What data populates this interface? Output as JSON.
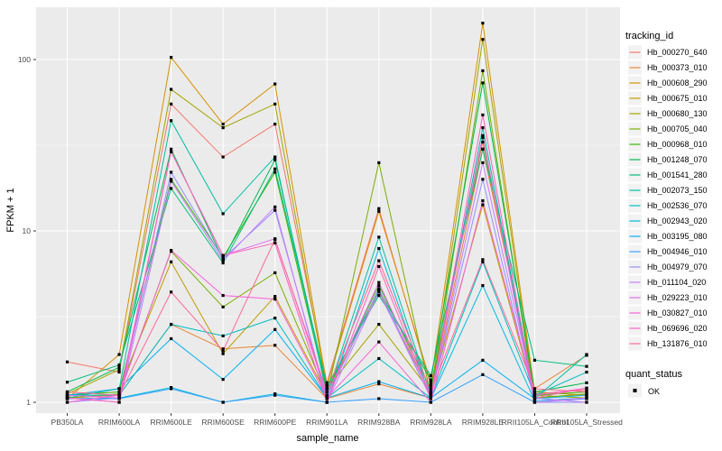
{
  "figure": {
    "background": "#ffffff",
    "panel_background": "#ebebeb",
    "grid_color": "#ffffff",
    "tick_color": "#333333",
    "tick_label_color": "#4d4d4d",
    "point_color": "#000000"
  },
  "legend": {
    "tracking_id_title": "tracking_id",
    "quant_status_title": "quant_status",
    "quant_items": [
      {
        "label": "OK",
        "symbol": "black-square"
      }
    ],
    "key_background": "#f2f2f2"
  },
  "chart_data": {
    "type": "line",
    "title": "",
    "xlabel": "sample_name",
    "ylabel": "FPKM + 1",
    "yscale": "log10",
    "ylim": [
      1,
      200
    ],
    "y_major_ticks": [
      1,
      10,
      100
    ],
    "y_minor_ticks": [
      3.1623,
      31.623
    ],
    "grid": true,
    "legend_position": "right",
    "point_shape": "square",
    "x": [
      "PB350LA",
      "RRIM600LA",
      "RRIM600LE",
      "RRIM600SE",
      "RRIM600PE",
      "RRIM901LA",
      "RRIM928BA",
      "RRIM928LA",
      "RRIM928LE",
      "RRII105LA_Control",
      "RRII105LA_Stressed"
    ],
    "series": [
      {
        "name": "Hb_000270_640",
        "color": "#F8766D",
        "values": [
          1.72,
          1.5,
          55,
          27,
          42,
          1.3,
          13.5,
          1.25,
          33,
          1.12,
          1.18
        ]
      },
      {
        "name": "Hb_000373_010",
        "color": "#EA8331",
        "values": [
          1.06,
          1.1,
          2.85,
          2.05,
          2.15,
          1.05,
          1.28,
          1.06,
          30,
          1.2,
          1.88
        ]
      },
      {
        "name": "Hb_000608_290",
        "color": "#D89000",
        "values": [
          1.05,
          1.9,
          103,
          42,
          72,
          1.25,
          13.0,
          1.3,
          163,
          1.15,
          1.1
        ]
      },
      {
        "name": "Hb_000675_010",
        "color": "#C09B00",
        "values": [
          1.1,
          1.2,
          6.6,
          1.92,
          4.15,
          1.1,
          4.5,
          1.12,
          14.2,
          1.06,
          1.1
        ]
      },
      {
        "name": "Hb_000680_130",
        "color": "#A3A500",
        "values": [
          1.12,
          1.55,
          67,
          40,
          55,
          1.2,
          2.85,
          1.15,
          131,
          1.1,
          1.06
        ]
      },
      {
        "name": "Hb_000705_040",
        "color": "#7CAE00",
        "values": [
          1.06,
          1.12,
          7.6,
          3.6,
          5.7,
          1.1,
          25,
          1.1,
          86,
          1.06,
          1.12
        ]
      },
      {
        "name": "Hb_000968_010",
        "color": "#39B600",
        "values": [
          1.1,
          1.15,
          20,
          7.0,
          22,
          1.15,
          4.8,
          1.2,
          35,
          1.1,
          1.15
        ]
      },
      {
        "name": "Hb_001248_070",
        "color": "#00BB4E",
        "values": [
          1.15,
          1.6,
          30,
          6.8,
          26,
          1.2,
          4.5,
          1.35,
          73,
          1.15,
          1.3
        ]
      },
      {
        "name": "Hb_001541_280",
        "color": "#00BF7D",
        "values": [
          1.31,
          1.65,
          17.7,
          6.5,
          23,
          1.25,
          4.2,
          1.43,
          30,
          1.76,
          1.62
        ]
      },
      {
        "name": "Hb_002073_150",
        "color": "#00C1A3",
        "values": [
          1.06,
          1.2,
          44,
          12.6,
          27,
          1.1,
          9.2,
          1.1,
          40,
          1.05,
          1.9
        ]
      },
      {
        "name": "Hb_002536_070",
        "color": "#00BFC4",
        "values": [
          1.1,
          1.1,
          2.85,
          2.44,
          3.1,
          1.06,
          1.8,
          1.06,
          6.6,
          1.1,
          1.5
        ]
      },
      {
        "name": "Hb_002943_020",
        "color": "#00BAE0",
        "values": [
          1.05,
          1.06,
          1.22,
          1.0,
          1.12,
          1.0,
          7.9,
          1.05,
          4.8,
          1.02,
          1.06
        ]
      },
      {
        "name": "Hb_003195_080",
        "color": "#00B0F6",
        "values": [
          1.1,
          1.2,
          2.35,
          1.36,
          2.66,
          1.06,
          1.32,
          1.06,
          1.76,
          1.05,
          1.1
        ]
      },
      {
        "name": "Hb_004946_010",
        "color": "#35A2FF",
        "values": [
          1.05,
          1.05,
          1.2,
          1.0,
          1.1,
          1.0,
          1.05,
          1.0,
          1.45,
          1.0,
          1.05
        ]
      },
      {
        "name": "Hb_004979_070",
        "color": "#9590FF",
        "values": [
          1.0,
          1.06,
          22,
          6.9,
          13.2,
          1.06,
          4.6,
          1.06,
          20,
          1.0,
          1.0
        ]
      },
      {
        "name": "Hb_011104_020",
        "color": "#C77CFF",
        "values": [
          1.06,
          1.0,
          19.5,
          6.7,
          13.8,
          1.0,
          4.4,
          1.06,
          25,
          1.06,
          1.0
        ]
      },
      {
        "name": "Hb_029223_010",
        "color": "#E76BF3",
        "values": [
          1.1,
          1.06,
          29,
          7.2,
          9.0,
          1.1,
          5.0,
          1.1,
          36,
          1.0,
          1.06
        ]
      },
      {
        "name": "Hb_030827_010",
        "color": "#FA62DB",
        "values": [
          1.0,
          1.1,
          7.7,
          4.2,
          4.0,
          1.06,
          2.25,
          1.0,
          15,
          1.1,
          1.21
        ]
      },
      {
        "name": "Hb_069696_020",
        "color": "#FF62BC",
        "values": [
          1.06,
          1.0,
          29,
          7.2,
          8.5,
          1.0,
          6.2,
          1.06,
          47.5,
          1.06,
          1.21
        ]
      },
      {
        "name": "Hb_131876_010",
        "color": "#FF6A98",
        "values": [
          1.15,
          1.1,
          4.4,
          2.0,
          8.9,
          1.15,
          6.7,
          1.15,
          6.8,
          1.2,
          1.15
        ]
      }
    ]
  }
}
